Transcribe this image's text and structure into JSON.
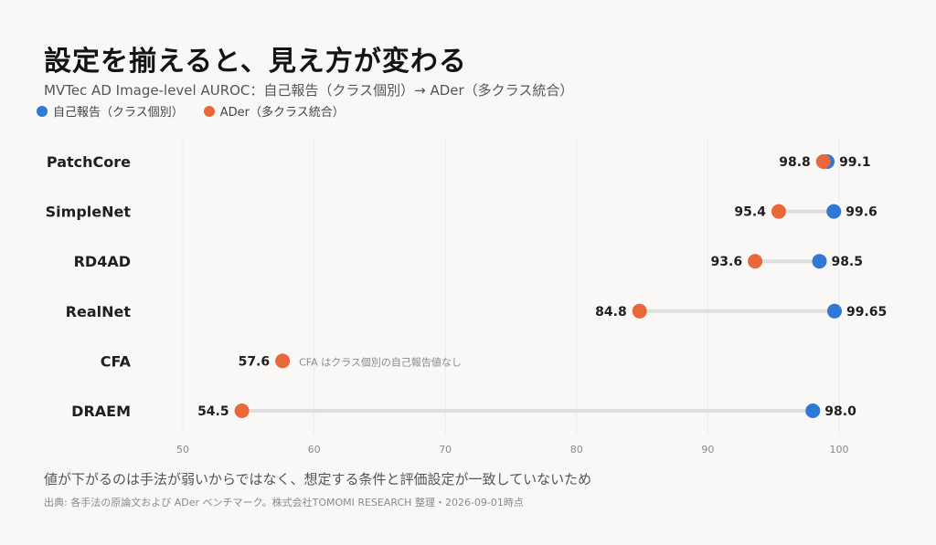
{
  "title": "設定を揃えると、見え方が変わる",
  "subtitle": "MVTec AD Image-level AUROC：自己報告（クラス個別）→ ADer（多クラス統合）",
  "legend": {
    "self": "自己報告（クラス個別）",
    "ader": "ADer（多クラス統合）"
  },
  "colors": {
    "self": "#2f78d6",
    "ader": "#e8683a",
    "connector": "#dedede",
    "grid": "#ececec"
  },
  "footnote": "値が下がるのは手法が弱いからではなく、想定する条件と評価設定が一致していないため",
  "source": "出典: 各手法の原論文および ADer ベンチマーク。株式会社TOMOMI RESEARCH 整理・2026-09-01時点",
  "chart_data": {
    "type": "dumbbell",
    "xlim": [
      50,
      100
    ],
    "xticks": [
      50,
      60,
      70,
      80,
      90,
      100
    ],
    "grid": true,
    "legend_position": "top-left",
    "series": [
      {
        "key": "self",
        "name": "自己報告（クラス個別）"
      },
      {
        "key": "ader",
        "name": "ADer（多クラス統合）"
      }
    ],
    "rows": [
      {
        "method": "PatchCore",
        "self": 99.1,
        "self_label": "99.1",
        "ader": 98.8,
        "ader_label": "98.8"
      },
      {
        "method": "SimpleNet",
        "self": 99.6,
        "self_label": "99.6",
        "ader": 95.4,
        "ader_label": "95.4"
      },
      {
        "method": "RD4AD",
        "self": 98.5,
        "self_label": "98.5",
        "ader": 93.6,
        "ader_label": "93.6"
      },
      {
        "method": "RealNet",
        "self": 99.65,
        "self_label": "99.65",
        "ader": 84.8,
        "ader_label": "84.8"
      },
      {
        "method": "CFA",
        "self": null,
        "self_label": "",
        "ader": 57.6,
        "ader_label": "57.6",
        "note": "CFA はクラス個別の自己報告値なし"
      },
      {
        "method": "DRAEM",
        "self": 98.0,
        "self_label": "98.0",
        "ader": 54.5,
        "ader_label": "54.5"
      }
    ]
  }
}
